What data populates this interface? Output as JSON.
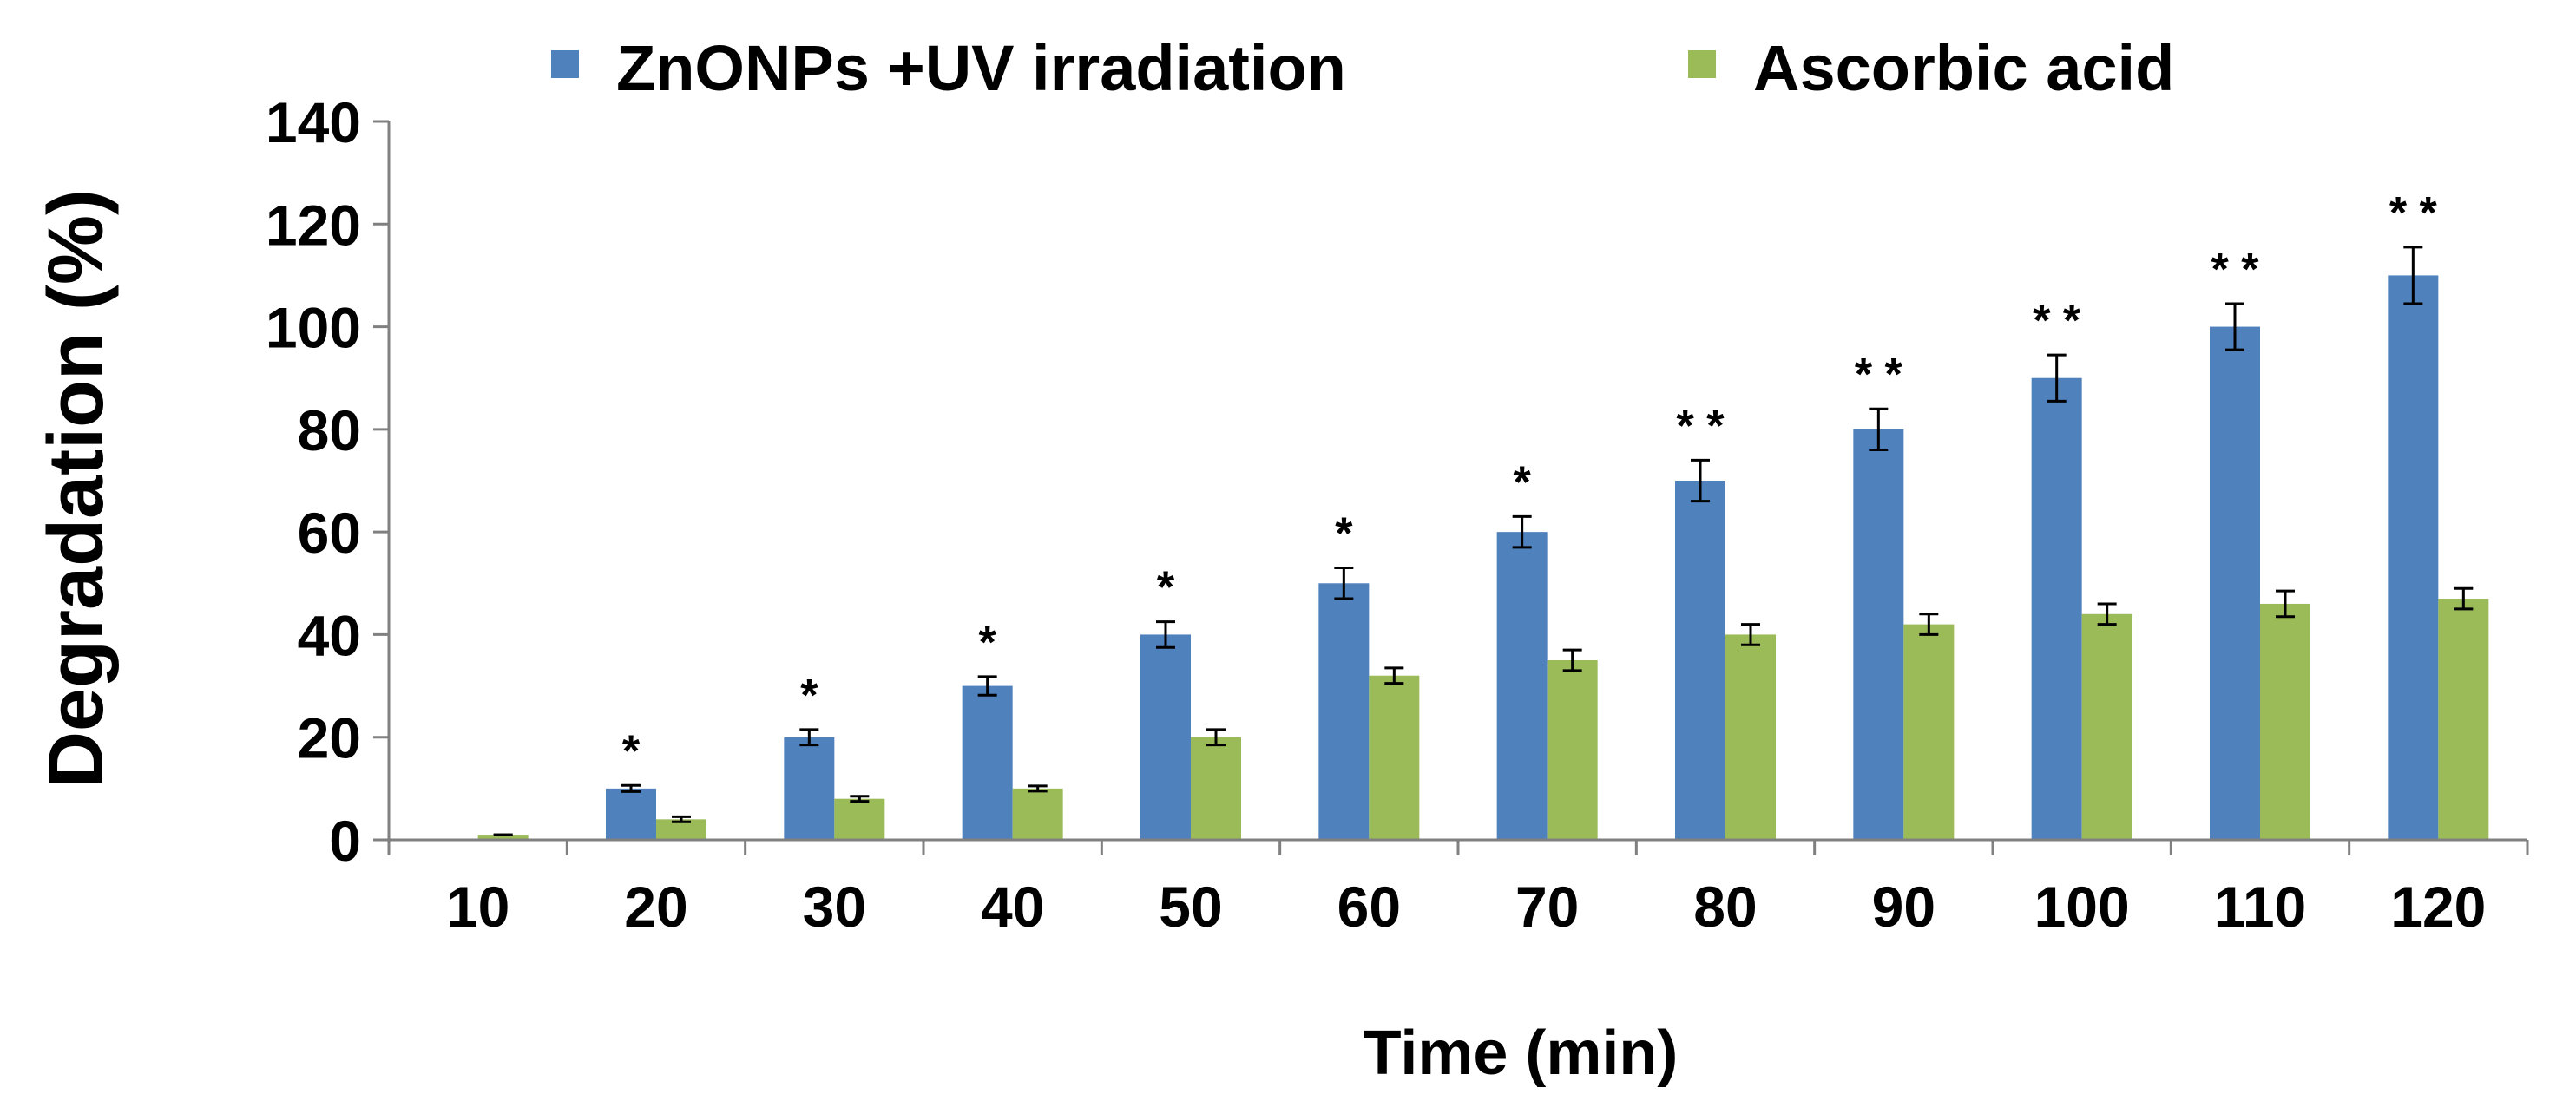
{
  "chart_data": {
    "type": "bar",
    "title": "",
    "xlabel": "Time (min)",
    "ylabel": "Degradation (%)",
    "categories": [
      "10",
      "20",
      "30",
      "40",
      "50",
      "60",
      "70",
      "80",
      "90",
      "100",
      "110",
      "120"
    ],
    "ylim": [
      0,
      140
    ],
    "yticks": [
      "0",
      "20",
      "40",
      "60",
      "80",
      "100",
      "120",
      "140"
    ],
    "grid": false,
    "legend_position": "top",
    "series": [
      {
        "name": "ZnONPs +UV irradiation",
        "color": "#4F81BD",
        "values": [
          0,
          10,
          20,
          30,
          40,
          50,
          60,
          70,
          80,
          90,
          100,
          110
        ],
        "errors": [
          0,
          0.6,
          1.5,
          1.8,
          2.5,
          3,
          3,
          4,
          4,
          4.5,
          4.5,
          5.5
        ]
      },
      {
        "name": "Ascorbic acid",
        "color": "#9BBB59",
        "values": [
          1,
          4,
          8,
          10,
          20,
          32,
          35,
          40,
          42,
          44,
          46,
          47
        ],
        "errors": [
          0,
          0.5,
          0.5,
          0.5,
          1.5,
          1.5,
          2,
          2,
          2,
          2,
          2.5,
          2
        ]
      }
    ],
    "annotations": [
      "",
      "*",
      "*",
      "*",
      "*",
      "*",
      "*",
      "* *",
      "* *",
      "* *",
      "* *",
      "* *"
    ]
  }
}
